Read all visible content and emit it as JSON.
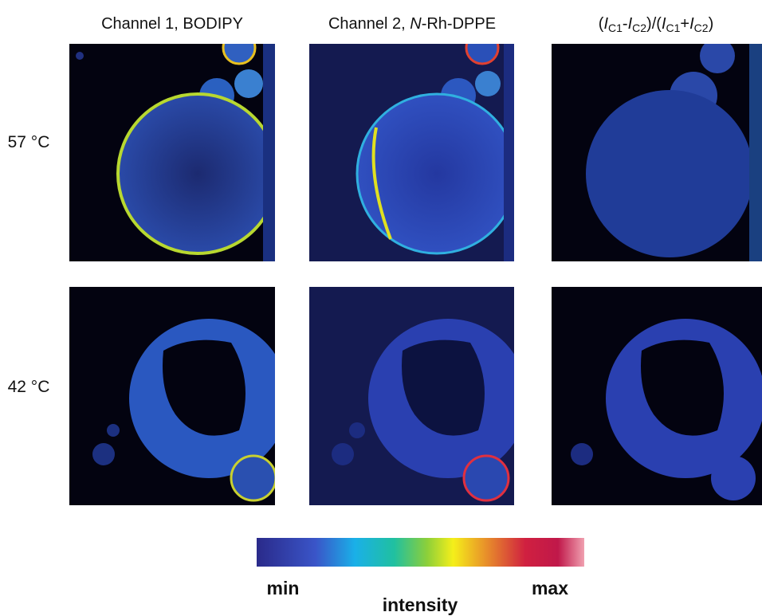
{
  "columns": [
    {
      "header": [
        "Channel 1, BODIPY"
      ]
    },
    {
      "header": [
        "Channel 2, ",
        "N",
        "-Rh-DPPE"
      ]
    },
    {
      "header": [
        "(",
        "I",
        "C1",
        "-",
        "I",
        "C2",
        ")/(",
        "I",
        "C1",
        "+",
        "I",
        "C2",
        ")"
      ]
    }
  ],
  "rows": [
    {
      "label": "57 °C"
    },
    {
      "label": "42 °C"
    }
  ],
  "colorbar": {
    "min": "min",
    "max": "max",
    "label": "intensity"
  }
}
